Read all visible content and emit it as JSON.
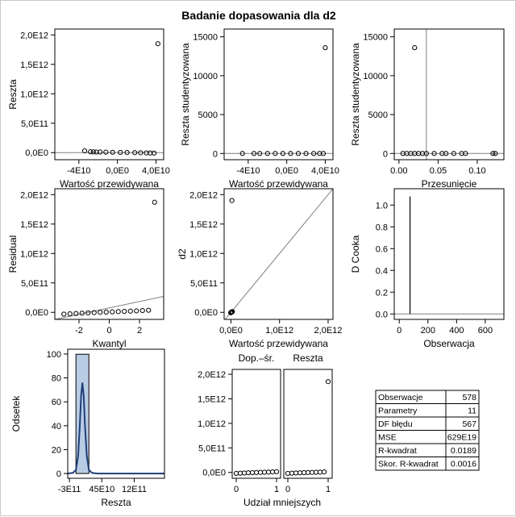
{
  "title": "Badanie dopasowania dla d2",
  "colors": {
    "frame": "#000000",
    "ref_line": "#808080",
    "hist_fill": "#b8cce4",
    "density": "#1f3f7a",
    "marker": "#000000"
  },
  "chart_data": [
    {
      "id": "p1",
      "type": "scatter",
      "xlabel": "Wartość przewidywana",
      "ylabel": "Reszta",
      "xlim": [
        -65000000000.0,
        48000000000.0
      ],
      "ylim": [
        -120000000000.0,
        2100000000000.0
      ],
      "xticks": [
        -40000000000.0,
        0,
        40000000000.0
      ],
      "xtick_labels": [
        "-4E10",
        "0,0E0",
        "4,0E10"
      ],
      "yticks": [
        0,
        500000000000.0,
        1000000000000.0,
        1500000000000.0,
        2000000000000.0
      ],
      "ytick_labels": [
        "0,0E0",
        "5,0E11",
        "1,0E12",
        "1,5E12",
        "2,0E12"
      ],
      "hline": 0,
      "points": [
        [
          -34000000000.0,
          30000000000.0
        ],
        [
          -28000000000.0,
          15000000000.0
        ],
        [
          -25000000000.0,
          12000000000.0
        ],
        [
          -22000000000.0,
          10000000000.0
        ],
        [
          -18000000000.0,
          10000000000.0
        ],
        [
          -12000000000.0,
          8000000000.0
        ],
        [
          -5000000000.0,
          6000000000.0
        ],
        [
          3000000000.0,
          4000000000.0
        ],
        [
          10000000000.0,
          2000000000.0
        ],
        [
          18000000000.0,
          0.0
        ],
        [
          24000000000.0,
          -3000000000.0
        ],
        [
          30000000000.0,
          -5000000000.0
        ],
        [
          34000000000.0,
          -7000000000.0
        ],
        [
          38000000000.0,
          -8000000000.0
        ],
        [
          42000000000.0,
          1850000000000.0
        ]
      ]
    },
    {
      "id": "p2",
      "type": "scatter",
      "xlabel": "Wartość przewidywana",
      "ylabel": "Reszta studentyzowana",
      "xlim": [
        -65000000000.0,
        48000000000.0
      ],
      "ylim": [
        -800,
        16000
      ],
      "xticks": [
        -40000000000.0,
        0,
        40000000000.0
      ],
      "xtick_labels": [
        "-4E10",
        "0,0E0",
        "4,0E10"
      ],
      "yticks": [
        0,
        5000,
        10000,
        15000
      ],
      "ytick_labels": [
        "0",
        "5000",
        "10000",
        "15000"
      ],
      "hline": 0,
      "points": [
        [
          -46000000000.0,
          0
        ],
        [
          -34000000000.0,
          0
        ],
        [
          -28000000000.0,
          0
        ],
        [
          -20000000000.0,
          0
        ],
        [
          -12000000000.0,
          0
        ],
        [
          -4000000000.0,
          0
        ],
        [
          4000000000.0,
          0
        ],
        [
          12000000000.0,
          0
        ],
        [
          20000000000.0,
          0
        ],
        [
          28000000000.0,
          0
        ],
        [
          34000000000.0,
          0
        ],
        [
          38000000000.0,
          0
        ],
        [
          40000000000.0,
          13600
        ]
      ]
    },
    {
      "id": "p3",
      "type": "scatter",
      "xlabel": "Przesunięcie",
      "ylabel": "Reszta studentyzowana",
      "xlim": [
        -0.006,
        0.134
      ],
      "ylim": [
        -800,
        16000
      ],
      "xticks": [
        0,
        0.05,
        0.1
      ],
      "xtick_labels": [
        "0.00",
        "0.05",
        "0.10"
      ],
      "yticks": [
        0,
        5000,
        10000,
        15000
      ],
      "ytick_labels": [
        "0",
        "5000",
        "10000",
        "15000"
      ],
      "hline": 0,
      "vline": 0.035,
      "points": [
        [
          0.005,
          0
        ],
        [
          0.01,
          0
        ],
        [
          0.015,
          0
        ],
        [
          0.02,
          0
        ],
        [
          0.025,
          0
        ],
        [
          0.03,
          0
        ],
        [
          0.035,
          0
        ],
        [
          0.045,
          0
        ],
        [
          0.055,
          0
        ],
        [
          0.06,
          0
        ],
        [
          0.07,
          0
        ],
        [
          0.08,
          0
        ],
        [
          0.085,
          0
        ],
        [
          0.12,
          0
        ],
        [
          0.123,
          0
        ],
        [
          0.02,
          13600
        ]
      ]
    },
    {
      "id": "p4",
      "type": "scatter",
      "xlabel": "Kwantyl",
      "ylabel": "Residual",
      "xlim": [
        -3.6,
        3.6
      ],
      "ylim": [
        -120000000000.0,
        2100000000000.0
      ],
      "xticks": [
        -2,
        0,
        2
      ],
      "xtick_labels": [
        "-2",
        "0",
        "2"
      ],
      "yticks": [
        0,
        500000000000.0,
        1000000000000.0,
        1500000000000.0,
        2000000000000.0
      ],
      "ytick_labels": [
        "0,0E0",
        "5,0E11",
        "1,0E12",
        "1,5E12",
        "2,0E12"
      ],
      "refline": [
        [
          -3.6,
          -120000000000.0
        ],
        [
          3.6,
          270000000000.0
        ]
      ],
      "points": [
        [
          -3.0,
          -30000000000.0
        ],
        [
          -2.6,
          -25000000000.0
        ],
        [
          -2.2,
          -20000000000.0
        ],
        [
          -1.8,
          -15000000000.0
        ],
        [
          -1.4,
          -10000000000.0
        ],
        [
          -1.0,
          -5000000000.0
        ],
        [
          -0.6,
          0
        ],
        [
          -0.2,
          4000000000.0
        ],
        [
          0.2,
          8000000000.0
        ],
        [
          0.6,
          12000000000.0
        ],
        [
          1.0,
          16000000000.0
        ],
        [
          1.4,
          20000000000.0
        ],
        [
          1.8,
          25000000000.0
        ],
        [
          2.2,
          30000000000.0
        ],
        [
          2.6,
          35000000000.0
        ],
        [
          3.0,
          1870000000000.0
        ]
      ]
    },
    {
      "id": "p5",
      "type": "scatter",
      "xlabel": "Wartość przewidywana",
      "ylabel": "d2",
      "xlim": [
        -140000000000.0,
        2100000000000.0
      ],
      "ylim": [
        -120000000000.0,
        2100000000000.0
      ],
      "xticks": [
        0,
        1000000000000.0,
        2000000000000.0
      ],
      "xtick_labels": [
        "0,0E0",
        "1,0E12",
        "2,0E12"
      ],
      "yticks": [
        0,
        500000000000.0,
        1000000000000.0,
        1500000000000.0,
        2000000000000.0
      ],
      "ytick_labels": [
        "0,0E0",
        "5,0E11",
        "1,0E12",
        "1,5E12",
        "2,0E12"
      ],
      "refline": [
        [
          -140000000000.0,
          -140000000000.0
        ],
        [
          2100000000000.0,
          2100000000000.0
        ]
      ],
      "points": [
        [
          -5000000000.0,
          -8000000000.0
        ],
        [
          0,
          -5000000000.0
        ],
        [
          5000000000.0,
          0
        ],
        [
          10000000000.0,
          3000000000.0
        ],
        [
          15000000000.0,
          5000000000.0
        ],
        [
          20000000000.0,
          8000000000.0
        ],
        [
          25000000000.0,
          10000000000.0
        ],
        [
          30000000000.0,
          12000000000.0
        ],
        [
          20000000000.0,
          1900000000000.0
        ]
      ]
    },
    {
      "id": "p6",
      "type": "line",
      "xlabel": "Obserwacja",
      "ylabel": "D Cooka",
      "xlim": [
        -35,
        730
      ],
      "ylim": [
        -0.05,
        1.15
      ],
      "xticks": [
        0,
        200,
        400,
        600
      ],
      "xtick_labels": [
        "0",
        "200",
        "400",
        "600"
      ],
      "yticks": [
        0,
        0.2,
        0.4,
        0.6,
        0.8,
        1.0
      ],
      "ytick_labels": [
        "0.0",
        "0.2",
        "0.4",
        "0.6",
        "0.8",
        "1.0"
      ],
      "hline": 0,
      "spike": [
        75,
        1.08
      ]
    },
    {
      "id": "p7",
      "type": "bar",
      "xlabel": "Reszta",
      "ylabel": "Odsetek",
      "xlim": [
        -340000000000.0,
        1900000000000.0
      ],
      "ylim": [
        -4,
        104
      ],
      "xticks": [
        -300000000000.0,
        450000000000.0,
        1200000000000.0
      ],
      "xtick_labels": [
        "-3E11",
        "45E10",
        "12E11"
      ],
      "yticks": [
        0,
        20,
        40,
        60,
        80,
        100
      ],
      "ytick_labels": [
        "0",
        "20",
        "40",
        "60",
        "80",
        "100"
      ],
      "bins": [
        [
          -150000000000.0,
          150000000000.0,
          99.8
        ],
        [
          1800000000000.0,
          2100000000000.0,
          0.2
        ]
      ],
      "density": [
        [
          -340000000000.0,
          0
        ],
        [
          -220000000000.0,
          0.5
        ],
        [
          -150000000000.0,
          3
        ],
        [
          -100000000000.0,
          15
        ],
        [
          -60000000000.0,
          40
        ],
        [
          -30000000000.0,
          65
        ],
        [
          0,
          76
        ],
        [
          30000000000.0,
          65
        ],
        [
          60000000000.0,
          40
        ],
        [
          100000000000.0,
          15
        ],
        [
          150000000000.0,
          3
        ],
        [
          220000000000.0,
          0.5
        ],
        [
          350000000000.0,
          0
        ],
        [
          1900000000000.0,
          0
        ]
      ]
    },
    {
      "id": "p8",
      "type": "scatter",
      "xlabel": "Udział mniejszych",
      "ylabel": "",
      "panels": [
        "Dop.–śr.",
        "Reszta"
      ],
      "xlim": [
        -0.1,
        1.1
      ],
      "ylim": [
        -120000000000.0,
        2100000000000.0
      ],
      "xticks": [
        0,
        1
      ],
      "xtick_labels": [
        "0",
        "1"
      ],
      "yticks": [
        0,
        500000000000.0,
        1000000000000.0,
        1500000000000.0,
        2000000000000.0
      ],
      "ytick_labels": [
        "0,0E0",
        "5,0E11",
        "1,0E12",
        "1,5E12",
        "2,0E12"
      ],
      "series": [
        {
          "points": [
            [
              0,
              -20000000000.0
            ],
            [
              0.1,
              -16000000000.0
            ],
            [
              0.2,
              -12000000000.0
            ],
            [
              0.3,
              -8000000000.0
            ],
            [
              0.4,
              -5000000000.0
            ],
            [
              0.5,
              -2000000000.0
            ],
            [
              0.6,
              0
            ],
            [
              0.7,
              3000000000.0
            ],
            [
              0.8,
              6000000000.0
            ],
            [
              0.9,
              10000000000.0
            ],
            [
              1.0,
              15000000000.0
            ]
          ]
        },
        {
          "points": [
            [
              0,
              -20000000000.0
            ],
            [
              0.1,
              -16000000000.0
            ],
            [
              0.2,
              -12000000000.0
            ],
            [
              0.3,
              -8000000000.0
            ],
            [
              0.4,
              -5000000000.0
            ],
            [
              0.5,
              -2000000000.0
            ],
            [
              0.6,
              0
            ],
            [
              0.7,
              3000000000.0
            ],
            [
              0.8,
              6000000000.0
            ],
            [
              0.9,
              10000000000.0
            ],
            [
              1.0,
              1850000000000.0
            ]
          ]
        }
      ]
    },
    {
      "id": "stats",
      "type": "table",
      "rows": [
        [
          "Obserwacje",
          "578"
        ],
        [
          "Parametry",
          "11"
        ],
        [
          "DF błędu",
          "567"
        ],
        [
          "MSE",
          "629E19"
        ],
        [
          "R-kwadrat",
          "0.0189"
        ],
        [
          "Skor. R-kwadrat",
          "0.0016"
        ]
      ]
    }
  ]
}
